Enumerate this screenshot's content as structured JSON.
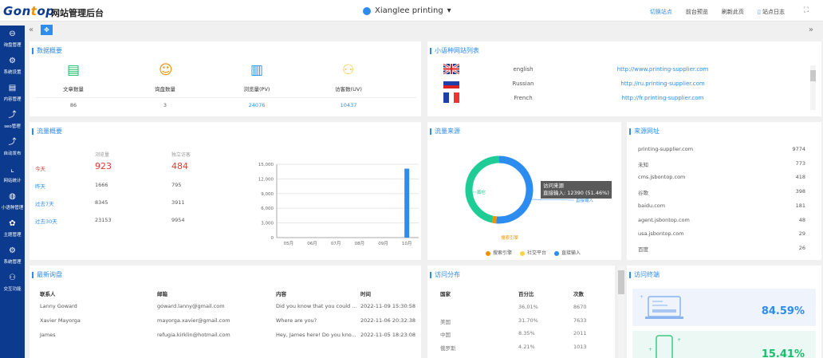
{
  "header": {
    "logo": "Gontop",
    "app_title": "网站管理后台",
    "site_name": "Xianglee printing",
    "links": [
      "切换站点",
      "前台预览",
      "刷新此页",
      "站点日志"
    ]
  },
  "sidebar": {
    "items": [
      {
        "label": "询盘管理",
        "icon": "chat-icon"
      },
      {
        "label": "系统设置",
        "icon": "gear-icon"
      },
      {
        "label": "内容管理",
        "icon": "document-icon"
      },
      {
        "label": "seo管理",
        "icon": "seo-icon"
      },
      {
        "label": "自动发布",
        "icon": "publish-icon"
      },
      {
        "label": "网站统计",
        "icon": "chart-icon"
      },
      {
        "label": "小语种管理",
        "icon": "globe-icon"
      },
      {
        "label": "主题管理",
        "icon": "theme-icon"
      },
      {
        "label": "系统管理",
        "icon": "gears-icon"
      },
      {
        "label": "交互功能",
        "icon": "users-icon"
      }
    ]
  },
  "overview": {
    "title": "数据概要",
    "items": [
      {
        "label": "文章数量",
        "value": "86",
        "color": "#19be6b"
      },
      {
        "label": "询盘数量",
        "value": "3",
        "color": "#f29100"
      },
      {
        "label": "浏览量(PV)",
        "value": "24076",
        "color": "#2d8cf0"
      },
      {
        "label": "访客数(UV)",
        "value": "10437",
        "color": "#f5c842"
      }
    ]
  },
  "languages": {
    "title": "小语种网站列表",
    "items": [
      {
        "flag": "uk",
        "name": "english",
        "url": "http://www.printing-supplier.com"
      },
      {
        "flag": "ru",
        "name": "Russian",
        "url": "http://ru.printing-supplier.com"
      },
      {
        "flag": "fr",
        "name": "French",
        "url": "http://fr.printing-supplier.com"
      }
    ]
  },
  "traffic": {
    "title": "流量概要",
    "col_pv": "浏览量",
    "col_uv": "独立访客",
    "rows": [
      {
        "label": "今天",
        "pv": "923",
        "uv": "484"
      },
      {
        "label": "昨天",
        "pv": "1666",
        "uv": "795"
      },
      {
        "label": "过去7天",
        "pv": "8345",
        "uv": "3911"
      },
      {
        "label": "过去30天",
        "pv": "23153",
        "uv": "9954"
      }
    ]
  },
  "chart_data": [
    {
      "type": "bar",
      "categories": [
        "05月",
        "06月",
        "07月",
        "08月",
        "09月",
        "10月"
      ],
      "values": [
        0,
        0,
        0,
        0,
        0,
        14100
      ],
      "ylim": [
        0,
        15000
      ],
      "yticks": [
        "0",
        "3,000",
        "6,000",
        "9,000",
        "12,000",
        "15,000"
      ],
      "grid": true,
      "color": "#2d8cf0"
    },
    {
      "type": "pie",
      "title": "流量来源",
      "slices": [
        {
          "name": "直接输入",
          "value": 12390,
          "percent": 51.46,
          "color": "#2d8cf0"
        },
        {
          "name": "搜索引擎",
          "percent": 2,
          "color": "#f29100"
        },
        {
          "name": "社交平台",
          "percent": 0,
          "color": "#f5d442"
        },
        {
          "name": "其它",
          "percent": 46.54,
          "color": "#1fcc95"
        }
      ],
      "legend": [
        "搜索引擎",
        "社交平台",
        "直接输入"
      ],
      "legend_position": "bottom",
      "tooltip_title": "访问来源",
      "tooltip_text": "直接输入: 12390 (51.46%)"
    }
  ],
  "sources": {
    "title": "来源网址",
    "items": [
      {
        "name": "printing-supplier.com",
        "count": "9774"
      },
      {
        "name": "未知",
        "count": "773"
      },
      {
        "name": "cms.jsbontop.com",
        "count": "418"
      },
      {
        "name": "谷歌",
        "count": "398"
      },
      {
        "name": "baidu.com",
        "count": "181"
      },
      {
        "name": "agent.jsbontop.com",
        "count": "48"
      },
      {
        "name": "usa.jsbontop.com",
        "count": "29"
      },
      {
        "name": "百度",
        "count": "26"
      }
    ]
  },
  "inquiries": {
    "title": "最新询盘",
    "columns": [
      "联系人",
      "邮箱",
      "内容",
      "时间"
    ],
    "rows": [
      [
        "Lanny Goward",
        "goward.lanny@gmail.com",
        "Did you know that you could ...",
        "2022-11-09 15:30:58"
      ],
      [
        "Xavier Mayorga",
        "mayorga.xavier@gmail.com",
        "Where are you?",
        "2022-11-06 20:32:38"
      ],
      [
        "James",
        "refugia.kirklin@hotmail.com",
        "Hey, James here! Do you kno...",
        "2022-11-05 18:23:08"
      ]
    ]
  },
  "distribution": {
    "title": "访问分布",
    "columns": [
      "国家",
      "百分比",
      "次数"
    ],
    "rows": [
      [
        "",
        "36.01%",
        "8670"
      ],
      [
        "美国",
        "31.70%",
        "7633"
      ],
      [
        "中国",
        "8.35%",
        "2011"
      ],
      [
        "俄罗斯",
        "4.21%",
        "1013"
      ]
    ]
  },
  "devices": {
    "title": "访问终端",
    "desktop": "84.59%",
    "mobile": "15.41%"
  }
}
